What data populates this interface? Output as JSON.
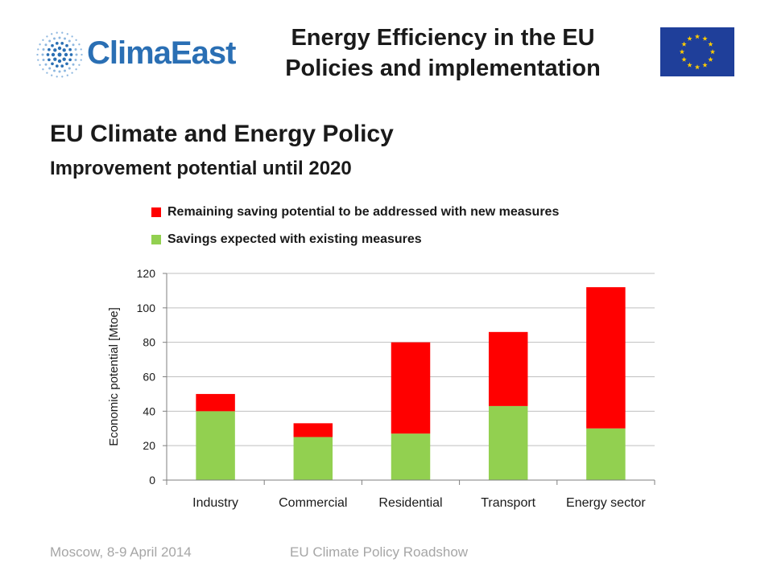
{
  "header": {
    "logo_text": "ClimaEast",
    "title_line1": "Energy Efficiency in the EU",
    "title_line2": "Policies and implementation"
  },
  "section": {
    "title": "EU Climate and Energy Policy",
    "subtitle": "Improvement potential until 2020"
  },
  "colors": {
    "remaining": "#ff0000",
    "existing": "#92d050",
    "logo": "#2a6fb4",
    "flag_blue": "#1f3f9a",
    "flag_star": "#ffcc00"
  },
  "chart_data": {
    "type": "bar",
    "stacked": true,
    "categories": [
      "Industry",
      "Commercial",
      "Residential",
      "Transport",
      "Energy sector"
    ],
    "series": [
      {
        "name": "Savings expected with existing measures",
        "values": [
          40,
          25,
          27,
          43,
          30
        ],
        "color": "#92d050"
      },
      {
        "name": "Remaining saving potential to be addressed with new measures",
        "values": [
          10,
          8,
          53,
          43,
          82
        ],
        "color": "#ff0000"
      }
    ],
    "ylabel": "Economic potential [Mtoe]",
    "ylim": [
      0,
      120
    ],
    "yticks": [
      0,
      20,
      40,
      60,
      80,
      100,
      120
    ],
    "grid": true,
    "legend_position": "top-left"
  },
  "footer": {
    "left": "Moscow, 8-9 April 2014",
    "right": "EU Climate Policy Roadshow"
  }
}
